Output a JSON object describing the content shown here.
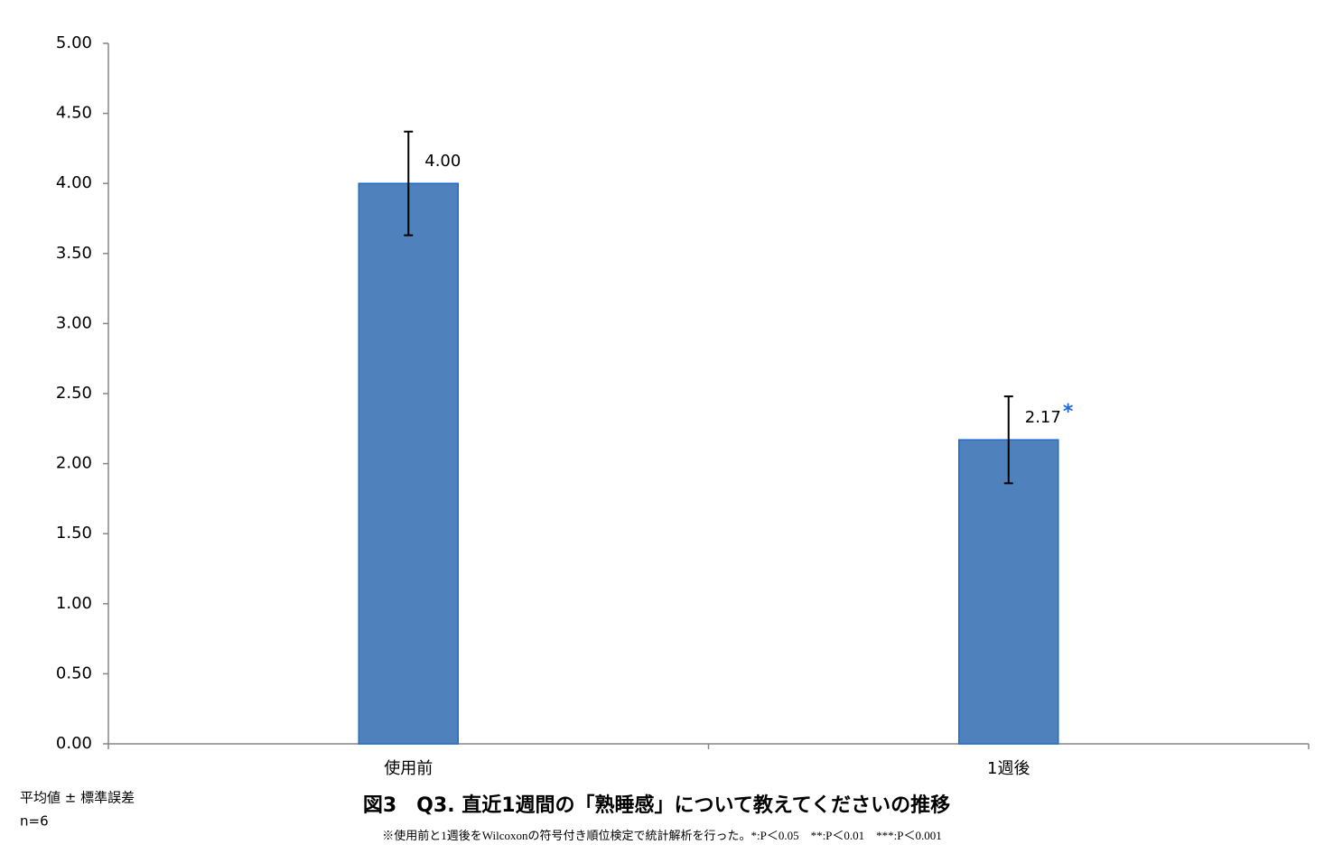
{
  "chart_data": {
    "type": "bar",
    "title": "図3　Q3. 直近1週間の「熟睡感」について教えてくださいの推移",
    "notes": [
      "平均値 ± 標準誤差",
      "n=6"
    ],
    "footnote": "※使用前と1週後をWilcoxonの符号付き順位検定で統計解析を行った。*:P＜0.05　**:P＜0.01　***:P＜0.001",
    "categories": [
      "使用前",
      "1週後"
    ],
    "values": [
      4.0,
      2.17
    ],
    "value_labels": [
      "4.00",
      "2.17"
    ],
    "errors": [
      0.37,
      0.31
    ],
    "significance": [
      null,
      "*"
    ],
    "color": "#4f81bd",
    "edge_color": "#1f6ad1",
    "significance_color": "#1f6ad1",
    "ylim": [
      0,
      5
    ],
    "yticks": [
      {
        "value": 0,
        "label": "0.00"
      },
      {
        "value": 0.5,
        "label": "0.50"
      },
      {
        "value": 1,
        "label": "1.00"
      },
      {
        "value": 1.5,
        "label": "1.50"
      },
      {
        "value": 2,
        "label": "2.00"
      },
      {
        "value": 2.5,
        "label": "2.50"
      },
      {
        "value": 3,
        "label": "3.00"
      },
      {
        "value": 3.5,
        "label": "3.50"
      },
      {
        "value": 4,
        "label": "4.00"
      },
      {
        "value": 4.5,
        "label": "4.50"
      },
      {
        "value": 5,
        "label": "5.00"
      }
    ],
    "grid": false
  }
}
